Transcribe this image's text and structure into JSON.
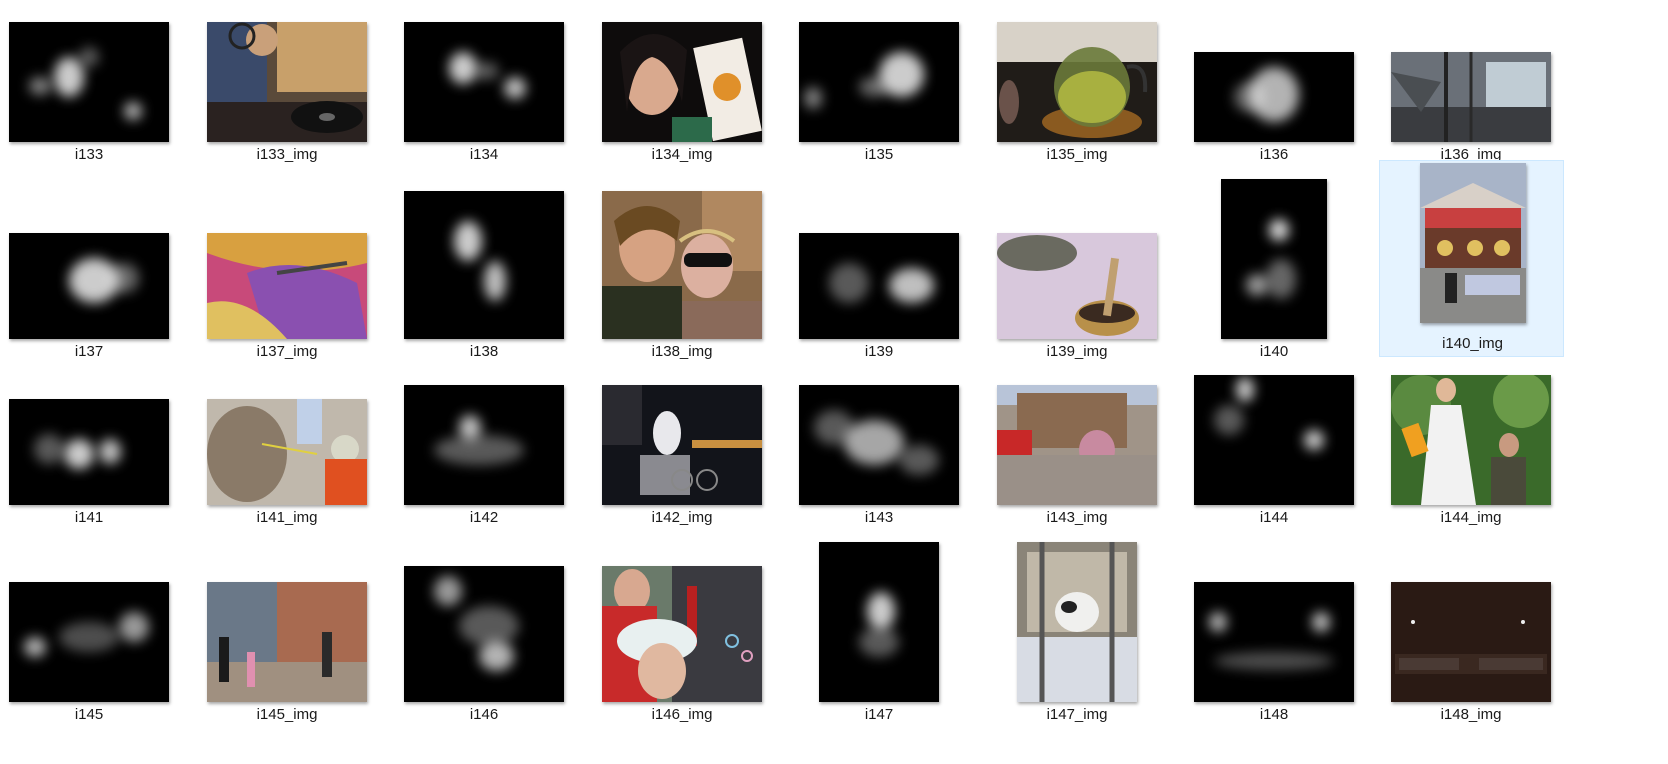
{
  "view": "large-icons",
  "selected_item": "i140_img",
  "items": [
    {
      "label": "i133",
      "kind": "saliency"
    },
    {
      "label": "i133_img",
      "kind": "photo",
      "icon": "dj-turntable-photo"
    },
    {
      "label": "i134",
      "kind": "saliency"
    },
    {
      "label": "i134_img",
      "kind": "photo",
      "icon": "woman-with-snack-bag-photo"
    },
    {
      "label": "i135",
      "kind": "saliency"
    },
    {
      "label": "i135_img",
      "kind": "photo",
      "icon": "teapot-photo"
    },
    {
      "label": "i136",
      "kind": "saliency"
    },
    {
      "label": "i136_img",
      "kind": "photo",
      "icon": "ruined-building-photo"
    },
    {
      "label": "i137",
      "kind": "saliency"
    },
    {
      "label": "i137_img",
      "kind": "photo",
      "icon": "colorful-fabric-photo"
    },
    {
      "label": "i138",
      "kind": "saliency"
    },
    {
      "label": "i138_img",
      "kind": "photo",
      "icon": "couple-selfie-photo"
    },
    {
      "label": "i139",
      "kind": "saliency"
    },
    {
      "label": "i139_img",
      "kind": "photo",
      "icon": "singing-bowl-photo"
    },
    {
      "label": "i140",
      "kind": "saliency"
    },
    {
      "label": "i140_img",
      "kind": "photo",
      "icon": "carousel-photo"
    },
    {
      "label": "i141",
      "kind": "saliency"
    },
    {
      "label": "i141_img",
      "kind": "photo",
      "icon": "donkey-child-photo"
    },
    {
      "label": "i142",
      "kind": "saliency"
    },
    {
      "label": "i142_img",
      "kind": "photo",
      "icon": "night-statue-photo"
    },
    {
      "label": "i143",
      "kind": "saliency"
    },
    {
      "label": "i143_img",
      "kind": "photo",
      "icon": "city-square-balloon-photo"
    },
    {
      "label": "i144",
      "kind": "saliency"
    },
    {
      "label": "i144_img",
      "kind": "photo",
      "icon": "bride-in-park-photo"
    },
    {
      "label": "i145",
      "kind": "saliency"
    },
    {
      "label": "i145_img",
      "kind": "photo",
      "icon": "street-houses-photo"
    },
    {
      "label": "i146",
      "kind": "saliency"
    },
    {
      "label": "i146_img",
      "kind": "photo",
      "icon": "bubbles-crowd-photo"
    },
    {
      "label": "i147",
      "kind": "saliency"
    },
    {
      "label": "i147_img",
      "kind": "photo",
      "icon": "cat-in-box-photo"
    },
    {
      "label": "i148",
      "kind": "saliency"
    },
    {
      "label": "i148_img",
      "kind": "photo",
      "icon": "dark-sign-photo"
    }
  ],
  "colors": {
    "selection_bg": "#e5f3ff",
    "selection_border": "#cce8ff",
    "label_text": "#1a1a1a"
  }
}
